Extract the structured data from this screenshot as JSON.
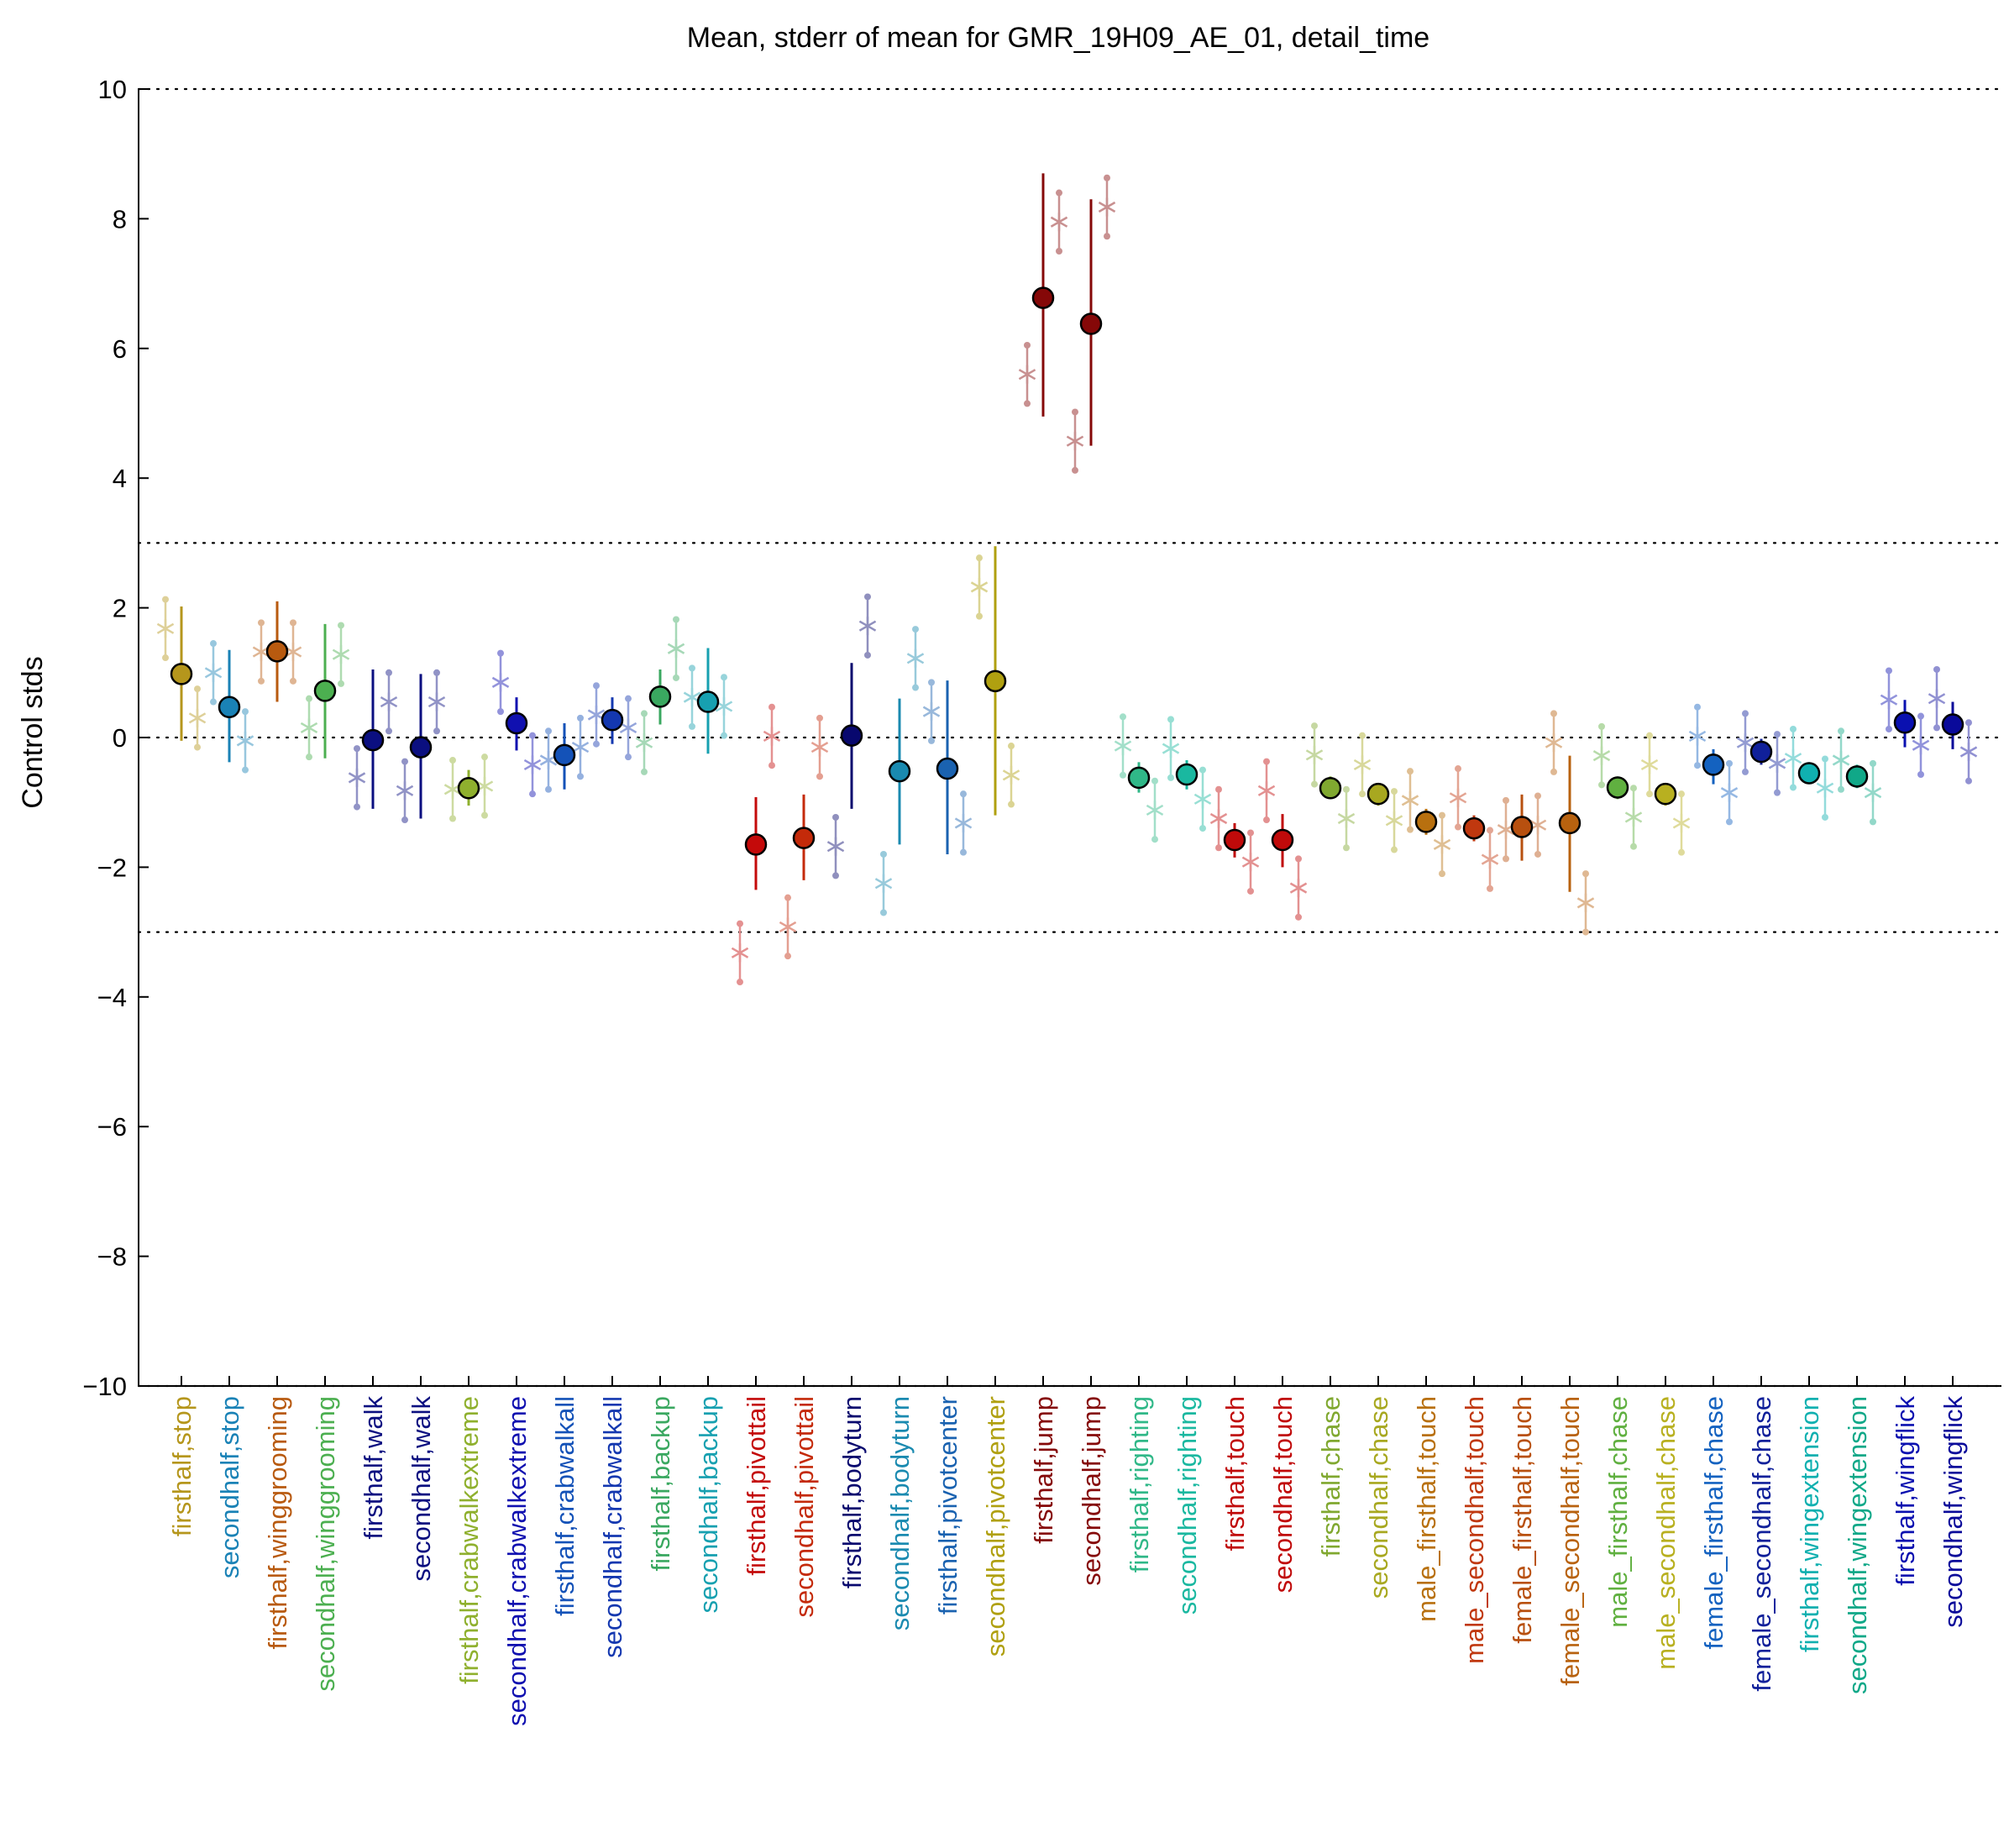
{
  "chart_data": {
    "type": "scatter",
    "title": "Mean, stderr of mean for GMR_19H09_AE_01, detail_time",
    "ylabel": "Control stds",
    "xlabel": "",
    "ylim": [
      -10,
      10
    ],
    "yticks": [
      -10,
      -8,
      -6,
      -4,
      -2,
      0,
      2,
      4,
      6,
      8,
      10
    ],
    "ytick_labels": [
      "−10",
      "−8",
      "−6",
      "−4",
      "−2",
      "0",
      "2",
      "4",
      "6",
      "8",
      "10"
    ],
    "reference_lines": [
      -10,
      -3,
      0,
      3,
      10
    ],
    "grid": false,
    "legend": "none",
    "categories": [
      "firsthalf,stop",
      "secondhalf,stop",
      "firsthalf,winggrooming",
      "secondhalf,winggrooming",
      "firsthalf,walk",
      "secondhalf,walk",
      "firsthalf,crabwalkextreme",
      "secondhalf,crabwalkextreme",
      "firsthalf,crabwalkall",
      "secondhalf,crabwalkall",
      "firsthalf,backup",
      "secondhalf,backup",
      "firsthalf,pivottail",
      "secondhalf,pivottail",
      "firsthalf,bodyturn",
      "secondhalf,bodyturn",
      "firsthalf,pivotcenter",
      "secondhalf,pivotcenter",
      "firsthalf,jump",
      "secondhalf,jump",
      "firsthalf,righting",
      "secondhalf,righting",
      "firsthalf,touch",
      "secondhalf,touch",
      "firsthalf,chase",
      "secondhalf,chase",
      "male_firsthalf,touch",
      "male_secondhalf,touch",
      "female_firsthalf,touch",
      "female_secondhalf,touch",
      "male_firsthalf,chase",
      "male_secondhalf,chase",
      "female_firsthalf,chase",
      "female_secondhalf,chase",
      "firsthalf,wingextension",
      "secondhalf,wingextension",
      "firsthalf,wingflick",
      "secondhalf,wingflick"
    ],
    "colors": [
      "#b5961c",
      "#1a82b6",
      "#b85a0f",
      "#4caf50",
      "#0b0f80",
      "#0b0f80",
      "#8fb02e",
      "#1010b0",
      "#1452b8",
      "#1438b0",
      "#3aa860",
      "#17a0b0",
      "#c40a0a",
      "#c42a0a",
      "#08086e",
      "#1a8ab0",
      "#1a62b0",
      "#b0a010",
      "#850808",
      "#850808",
      "#30b888",
      "#1ab8a0",
      "#c00a0a",
      "#c00a0a",
      "#80a830",
      "#a8a820",
      "#b8700f",
      "#c0380f",
      "#b8500f",
      "#b8620f",
      "#60b040",
      "#b8b020",
      "#1462c0",
      "#10209a",
      "#10b0b0",
      "#10a888",
      "#0a10b0",
      "#0a0a9a"
    ],
    "means": [
      0.98,
      0.47,
      1.33,
      0.72,
      -0.04,
      -0.15,
      -0.78,
      0.22,
      -0.27,
      0.27,
      0.63,
      0.55,
      -1.65,
      -1.55,
      0.03,
      -0.52,
      -0.48,
      0.87,
      6.78,
      6.38,
      -0.62,
      -0.57,
      -1.58,
      -1.58,
      -0.78,
      -0.87,
      -1.3,
      -1.4,
      -1.38,
      -1.32,
      -0.77,
      -0.87,
      -0.42,
      -0.22,
      -0.55,
      -0.6,
      0.23,
      0.2
    ],
    "err_low": [
      -0.05,
      -0.38,
      0.55,
      -0.32,
      -1.1,
      -1.25,
      -1.05,
      -0.2,
      -0.8,
      -0.1,
      0.2,
      -0.25,
      -2.35,
      -2.2,
      -1.1,
      -1.65,
      -1.8,
      -1.2,
      4.95,
      4.5,
      -0.85,
      -0.8,
      -1.85,
      -2.0,
      -0.95,
      -1.05,
      -1.5,
      -1.6,
      -1.9,
      -2.38,
      -0.95,
      -1.05,
      -0.72,
      -0.42,
      -0.72,
      -0.78,
      -0.15,
      -0.18
    ],
    "err_high": [
      2.02,
      1.35,
      2.1,
      1.75,
      1.05,
      0.98,
      -0.5,
      0.62,
      0.22,
      0.62,
      1.05,
      1.38,
      -0.92,
      -0.88,
      1.15,
      0.6,
      0.88,
      2.95,
      8.7,
      8.3,
      -0.38,
      -0.35,
      -1.32,
      -1.18,
      -0.6,
      -0.7,
      -1.1,
      -1.2,
      -0.88,
      -0.28,
      -0.6,
      -0.7,
      -0.18,
      -0.02,
      -0.38,
      -0.42,
      0.58,
      0.55
    ],
    "samples_left": [
      1.68,
      1.0,
      1.32,
      0.15,
      -0.62,
      -0.82,
      -0.8,
      0.85,
      -0.35,
      0.35,
      -0.08,
      0.62,
      -3.32,
      -2.92,
      -1.68,
      -2.25,
      0.4,
      2.32,
      5.6,
      4.57,
      -0.13,
      -0.17,
      -1.25,
      -0.82,
      -0.27,
      -0.42,
      -0.97,
      -0.93,
      -1.42,
      -0.08,
      -0.28,
      -0.42,
      0.02,
      -0.08,
      -0.32,
      -0.35,
      0.58,
      0.6
    ],
    "samples_right": [
      0.3,
      -0.05,
      1.32,
      1.28,
      0.55,
      0.55,
      -0.75,
      -0.42,
      -0.15,
      0.15,
      1.37,
      0.48,
      0.02,
      -0.15,
      1.72,
      1.22,
      -1.32,
      -0.58,
      7.95,
      8.18,
      -1.12,
      -0.95,
      -1.92,
      -2.32,
      -1.25,
      -1.28,
      -1.65,
      -1.88,
      -1.35,
      -2.55,
      -1.23,
      -1.32,
      -0.85,
      -0.4,
      -0.78,
      -0.85,
      -0.12,
      -0.22
    ]
  }
}
